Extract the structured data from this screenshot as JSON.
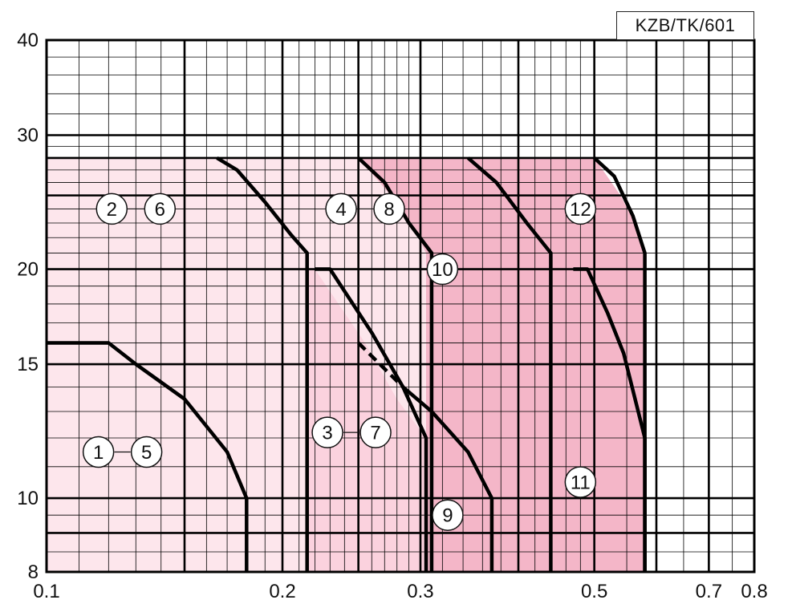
{
  "reference_code": "KZB/TK/601",
  "colors": {
    "region_light": "#fde6ec",
    "region_mid": "#fbd2de",
    "region_dark": "#f4b6c8",
    "grid": "#000000",
    "curve": "#000000"
  },
  "chart_data": {
    "type": "line",
    "title": "",
    "xlabel": "",
    "ylabel": "",
    "x_scale": "log",
    "y_scale": "log",
    "xlim": [
      0.1,
      0.8
    ],
    "ylim": [
      8,
      40
    ],
    "x_tick_labels": [
      {
        "value": 0.1,
        "label": "0.1"
      },
      {
        "value": 0.2,
        "label": "0.2"
      },
      {
        "value": 0.3,
        "label": "0.3"
      },
      {
        "value": 0.5,
        "label": "0.5"
      },
      {
        "value": 0.7,
        "label": "0.7"
      },
      {
        "value": 0.8,
        "label": "0.8"
      }
    ],
    "y_tick_labels": [
      {
        "value": 8,
        "label": "8"
      },
      {
        "value": 10,
        "label": "10"
      },
      {
        "value": 15,
        "label": "15"
      },
      {
        "value": 20,
        "label": "20"
      },
      {
        "value": 30,
        "label": "30"
      },
      {
        "value": 40,
        "label": "40"
      }
    ],
    "grid_major_x": [
      0.1,
      0.15,
      0.2,
      0.25,
      0.3,
      0.4,
      0.5,
      0.6,
      0.7,
      0.8
    ],
    "grid_minor_x": [
      0.11,
      0.12,
      0.13,
      0.14,
      0.16,
      0.17,
      0.18,
      0.19,
      0.21,
      0.22,
      0.23,
      0.24,
      0.26,
      0.27,
      0.28,
      0.29,
      0.32,
      0.34,
      0.36,
      0.38,
      0.42,
      0.44,
      0.46,
      0.48,
      0.55,
      0.65,
      0.75
    ],
    "grid_major_y": [
      8,
      9,
      10,
      15,
      20,
      25,
      28,
      30,
      40
    ],
    "grid_minor_y": [
      8.5,
      9.5,
      11,
      12,
      13,
      14,
      16,
      17,
      18,
      19,
      21,
      22,
      23,
      24,
      26,
      27,
      29,
      32,
      34,
      36,
      38
    ],
    "regions": [
      {
        "shade": "light",
        "points": [
          [
            0.1,
            8
          ],
          [
            0.1,
            28
          ],
          [
            0.25,
            28
          ],
          [
            0.275,
            25
          ],
          [
            0.295,
            22.5
          ],
          [
            0.305,
            21
          ],
          [
            0.305,
            12
          ],
          [
            0.28,
            13.5
          ],
          [
            0.255,
            16
          ],
          [
            0.22,
            20
          ],
          [
            0.215,
            20
          ],
          [
            0.215,
            8
          ]
        ]
      },
      {
        "shade": "mid",
        "points": [
          [
            0.215,
            8
          ],
          [
            0.215,
            20
          ],
          [
            0.22,
            20
          ],
          [
            0.255,
            16
          ],
          [
            0.28,
            13.5
          ],
          [
            0.305,
            12
          ],
          [
            0.305,
            8
          ]
        ]
      },
      {
        "shade": "dark",
        "points": [
          [
            0.305,
            8
          ],
          [
            0.305,
            21
          ],
          [
            0.295,
            22.5
          ],
          [
            0.275,
            25
          ],
          [
            0.25,
            28
          ],
          [
            0.5,
            28
          ],
          [
            0.54,
            25
          ],
          [
            0.57,
            22.5
          ],
          [
            0.58,
            21
          ],
          [
            0.58,
            8
          ]
        ]
      }
    ],
    "series": [
      {
        "values": [
          [
            0.1,
            16
          ],
          [
            0.12,
            16
          ],
          [
            0.13,
            15
          ],
          [
            0.15,
            13.5
          ],
          [
            0.17,
            11.5
          ],
          [
            0.18,
            10
          ],
          [
            0.18,
            8
          ]
        ]
      },
      {
        "values": [
          [
            0.165,
            28
          ],
          [
            0.175,
            27
          ],
          [
            0.19,
            24.5
          ],
          [
            0.205,
            22.2
          ],
          [
            0.215,
            21
          ],
          [
            0.215,
            8
          ]
        ]
      },
      {
        "values": [
          [
            0.22,
            20
          ],
          [
            0.23,
            20
          ],
          [
            0.26,
            16.5
          ],
          [
            0.285,
            14
          ],
          [
            0.305,
            12
          ],
          [
            0.305,
            8
          ]
        ]
      },
      {
        "values": [
          [
            0.25,
            28
          ],
          [
            0.27,
            26
          ],
          [
            0.29,
            23
          ],
          [
            0.31,
            21
          ],
          [
            0.31,
            8
          ]
        ]
      },
      {
        "values": [
          [
            0.285,
            14
          ],
          [
            0.31,
            13
          ],
          [
            0.345,
            11.5
          ],
          [
            0.37,
            10
          ],
          [
            0.37,
            8
          ]
        ]
      },
      {
        "values": [
          [
            0.345,
            28
          ],
          [
            0.375,
            26
          ],
          [
            0.41,
            23
          ],
          [
            0.44,
            21
          ],
          [
            0.44,
            8
          ]
        ]
      },
      {
        "values": [
          [
            0.47,
            20
          ],
          [
            0.49,
            20
          ],
          [
            0.52,
            17.5
          ],
          [
            0.545,
            15.5
          ],
          [
            0.58,
            12
          ],
          [
            0.58,
            8
          ]
        ]
      },
      {
        "values": [
          [
            0.5,
            28
          ],
          [
            0.53,
            26.5
          ],
          [
            0.56,
            23.5
          ],
          [
            0.58,
            21
          ],
          [
            0.58,
            8
          ]
        ]
      },
      {
        "values": [
          [
            0.25,
            16
          ],
          [
            0.285,
            14
          ]
        ],
        "dashed": true
      }
    ],
    "labels": [
      {
        "left": "2",
        "right": "6",
        "x": 0.13,
        "y": 24
      },
      {
        "left": "4",
        "right": "8",
        "x": 0.255,
        "y": 24
      },
      {
        "left": "1",
        "right": "5",
        "x": 0.125,
        "y": 11.5
      },
      {
        "left": "3",
        "right": "7",
        "x": 0.245,
        "y": 12.2
      },
      {
        "single": "10",
        "x": 0.32,
        "y": 20
      },
      {
        "single": "12",
        "x": 0.48,
        "y": 24
      },
      {
        "single": "9",
        "x": 0.325,
        "y": 9.5
      },
      {
        "single": "11",
        "x": 0.48,
        "y": 10.5
      }
    ]
  }
}
